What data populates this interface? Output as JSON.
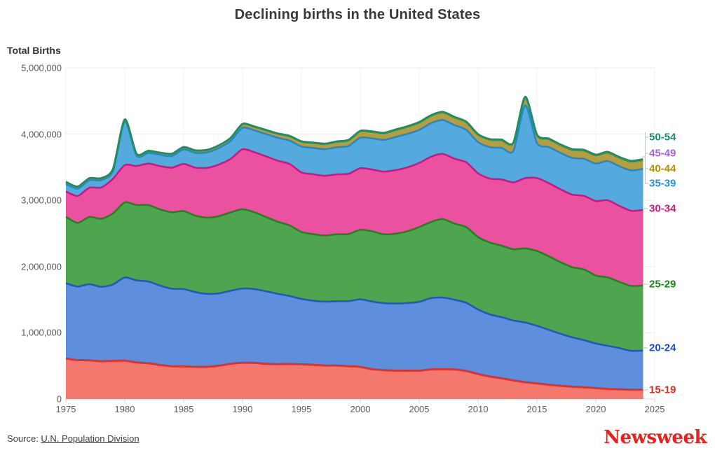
{
  "title": "Declining births in the United States",
  "y_axis": {
    "title": "Total Births",
    "tick_labels": [
      "0",
      "1,000,000",
      "2,000,000",
      "3,000,000",
      "4,000,000",
      "5,000,000"
    ],
    "tick_values": [
      0,
      1000000,
      2000000,
      3000000,
      4000000,
      5000000
    ]
  },
  "x_axis": {
    "tick_labels": [
      "1975",
      "1980",
      "1985",
      "1990",
      "1995",
      "2000",
      "2005",
      "2010",
      "2015",
      "2020",
      "2025"
    ],
    "tick_values": [
      1975,
      1980,
      1985,
      1990,
      1995,
      2000,
      2005,
      2010,
      2015,
      2020,
      2025
    ]
  },
  "source": {
    "label": "Source: ",
    "link_text": "U.N. Population Division"
  },
  "brand": {
    "name": "Newsweek",
    "color": "#E3231E"
  },
  "chart_data": {
    "type": "area",
    "stacked": true,
    "title": "Declining births in the United States",
    "xlabel": "",
    "ylabel": "Total Births",
    "ylim": [
      0,
      5000000
    ],
    "xlim": [
      1975,
      2025
    ],
    "grid": true,
    "legend_position": "right",
    "x": [
      1975,
      1976,
      1977,
      1978,
      1979,
      1980,
      1981,
      1982,
      1983,
      1984,
      1985,
      1986,
      1987,
      1988,
      1989,
      1990,
      1991,
      1992,
      1993,
      1994,
      1995,
      1996,
      1997,
      1998,
      1999,
      2000,
      2001,
      2002,
      2003,
      2004,
      2005,
      2006,
      2007,
      2008,
      2009,
      2010,
      2011,
      2012,
      2013,
      2014,
      2015,
      2016,
      2017,
      2018,
      2019,
      2020,
      2021,
      2022,
      2023,
      2024
    ],
    "series": [
      {
        "name": "15-19",
        "fill": "#F3796F",
        "stroke": "#E23126",
        "label_color": "#E02B20",
        "values": [
          610000,
          588000,
          585000,
          570000,
          575000,
          580000,
          552000,
          540000,
          514000,
          495000,
          492000,
          486000,
          486000,
          503000,
          532000,
          548000,
          545000,
          531000,
          526000,
          530000,
          524000,
          517000,
          506000,
          505000,
          495000,
          485000,
          450000,
          437000,
          427000,
          428000,
          427000,
          448000,
          450000,
          447000,
          423000,
          377000,
          339000,
          313000,
          281000,
          254000,
          235000,
          215000,
          200000,
          185000,
          178000,
          165000,
          152000,
          147000,
          141000,
          140000
        ]
      },
      {
        "name": "20-24",
        "fill": "#5F8EDC",
        "stroke": "#2157C6",
        "label_color": "#1D4FC4",
        "values": [
          1140000,
          1110000,
          1150000,
          1125000,
          1155000,
          1255000,
          1240000,
          1235000,
          1198000,
          1170000,
          1168000,
          1128000,
          1102000,
          1092000,
          1103000,
          1120000,
          1115000,
          1095000,
          1062000,
          1025000,
          988000,
          967000,
          964000,
          972000,
          983000,
          1020000,
          1022000,
          1010000,
          1015000,
          1020000,
          1040000,
          1075000,
          1082000,
          1052000,
          1029000,
          974000,
          939000,
          923000,
          905000,
          901000,
          871000,
          830000,
          786000,
          746000,
          711000,
          673000,
          651000,
          622000,
          586000,
          590000
        ]
      },
      {
        "name": "25-29",
        "fill": "#4FA44F",
        "stroke": "#188A18",
        "label_color": "#118A11",
        "values": [
          1000000,
          962000,
          1014000,
          1027000,
          1073000,
          1134000,
          1137000,
          1154000,
          1150000,
          1155000,
          1178000,
          1154000,
          1150000,
          1167000,
          1184000,
          1198000,
          1161000,
          1122000,
          1088000,
          1067000,
          1010000,
          1005000,
          1000000,
          1010000,
          1015000,
          1050000,
          1061000,
          1040000,
          1055000,
          1085000,
          1130000,
          1150000,
          1185000,
          1150000,
          1144000,
          1095000,
          1085000,
          1080000,
          1075000,
          1120000,
          1130000,
          1110000,
          1080000,
          1060000,
          1068000,
          1027000,
          1033000,
          1000000,
          980000,
          985000
        ]
      },
      {
        "name": "30-34",
        "fill": "#EA529F",
        "stroke": "#D6137F",
        "label_color": "#D6137F",
        "values": [
          384000,
          406000,
          442000,
          471000,
          522000,
          563000,
          590000,
          626000,
          655000,
          673000,
          712000,
          726000,
          753000,
          779000,
          808000,
          906000,
          905000,
          916000,
          922000,
          927000,
          900000,
          905000,
          900000,
          905000,
          908000,
          930000,
          932000,
          946000,
          960000,
          965000,
          968000,
          985000,
          984000,
          980000,
          978000,
          962000,
          965000,
          1000000,
          1010000,
          1060000,
          1100000,
          1105000,
          1100000,
          1095000,
          1110000,
          1124000,
          1166000,
          1146000,
          1135000,
          1140000
        ]
      },
      {
        "name": "35-39",
        "fill": "#54AADD",
        "stroke": "#2488CB",
        "label_color": "#2193D8",
        "values": [
          113000,
          111000,
          113000,
          113000,
          120000,
          660000,
          154000,
          162000,
          171000,
          177000,
          219000,
          224000,
          233000,
          249000,
          272000,
          325000,
          331000,
          337000,
          346000,
          353000,
          392000,
          399000,
          403000,
          410000,
          420000,
          462000,
          471000,
          480000,
          500000,
          505000,
          498000,
          506000,
          512000,
          506000,
          491000,
          470000,
          475000,
          476000,
          476000,
          1100000,
          530000,
          545000,
          550000,
          555000,
          560000,
          566000,
          592000,
          599000,
          610000,
          620000
        ]
      },
      {
        "name": "40-44",
        "fill": "#B59E42",
        "stroke": "#9C8A1D",
        "label_color": "#AD9200",
        "values": [
          27000,
          26000,
          25000,
          24000,
          24000,
          24000,
          24000,
          25000,
          27000,
          28000,
          30000,
          31000,
          33000,
          36000,
          40000,
          50000,
          52000,
          55000,
          59000,
          63000,
          69000,
          71000,
          74000,
          78000,
          82000,
          92000,
          94000,
          97000,
          101000,
          104000,
          107000,
          109000,
          111000,
          113000,
          111000,
          109000,
          110000,
          112000,
          113000,
          116000,
          114000,
          115000,
          115000,
          117000,
          120000,
          120000,
          123000,
          125000,
          128000,
          130000
        ]
      },
      {
        "name": "45-49",
        "fill": "#AE6FD8",
        "stroke": "#9C55CF",
        "label_color": "#A662D8",
        "values": [
          4000,
          4000,
          4000,
          4000,
          4000,
          4000,
          4000,
          4000,
          4000,
          4000,
          4000,
          4000,
          4000,
          4000,
          5000,
          5000,
          5000,
          5000,
          6000,
          6000,
          7000,
          7000,
          7000,
          8000,
          8000,
          9000,
          9000,
          9000,
          10000,
          10000,
          10000,
          10000,
          10000,
          10000,
          10000,
          10000,
          10000,
          11000,
          11000,
          11000,
          11000,
          11000,
          11000,
          12000,
          12000,
          12000,
          12000,
          12000,
          13000,
          13000
        ]
      },
      {
        "name": "50-54",
        "fill": "#2FA06F",
        "stroke": "#1E8F63",
        "label_color": "#11916A",
        "values": [
          1000,
          1000,
          1000,
          1000,
          1000,
          1000,
          1000,
          1000,
          1000,
          1000,
          1000,
          1000,
          1000,
          1000,
          1000,
          1000,
          1000,
          1000,
          1000,
          1000,
          1000,
          1000,
          1000,
          1000,
          1000,
          1000,
          1000,
          1000,
          1000,
          1000,
          1000,
          1000,
          1000,
          1000,
          1000,
          1000,
          1000,
          1000,
          1000,
          1000,
          1000,
          1000,
          1000,
          2000,
          2000,
          2000,
          2000,
          2000,
          2000,
          2000
        ]
      }
    ]
  }
}
